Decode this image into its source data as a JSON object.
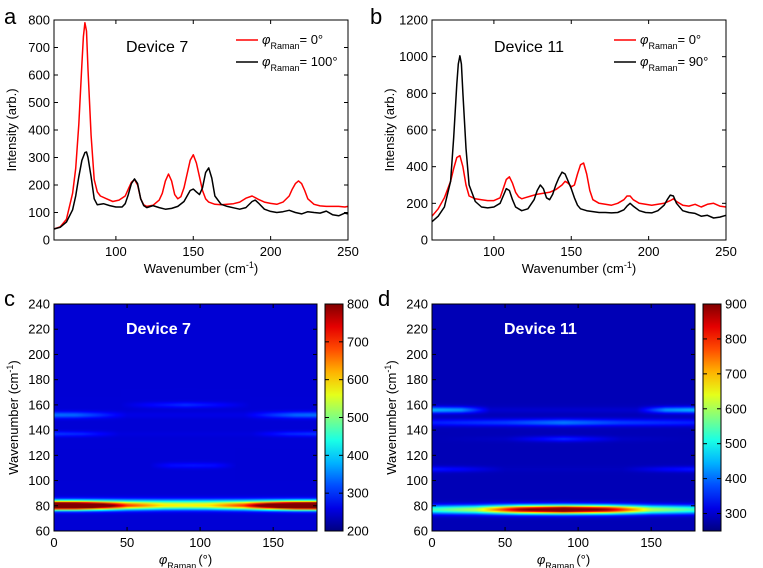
{
  "chart_data": [
    {
      "panel": "a",
      "type": "line",
      "annotation": "Device 7",
      "xlabel": "Wavenumber (cm",
      "xlabel_sup": "-1",
      "xlabel_end": ")",
      "ylabel": "Intensity (arb.)",
      "xlim": [
        60,
        250
      ],
      "ylim": [
        0,
        800
      ],
      "xticks": [
        100,
        150,
        200,
        250
      ],
      "yticks": [
        0,
        100,
        200,
        300,
        400,
        500,
        600,
        700,
        800
      ],
      "legend_position": "top-right",
      "series": [
        {
          "legend_var": "φ",
          "legend_sub": "Raman",
          "legend_value": "= 0°",
          "color": "#ff0000",
          "x": [
            60,
            64,
            68,
            72,
            74,
            76,
            78,
            79,
            80,
            81,
            82,
            84,
            86,
            88,
            90,
            94,
            98,
            102,
            106,
            108,
            110,
            112,
            114,
            116,
            118,
            120,
            124,
            128,
            130,
            132,
            134,
            136,
            138,
            140,
            142,
            144,
            146,
            148,
            150,
            152,
            154,
            156,
            158,
            160,
            164,
            168,
            172,
            176,
            180,
            184,
            188,
            192,
            196,
            200,
            204,
            208,
            212,
            214,
            216,
            218,
            220,
            222,
            224,
            228,
            232,
            236,
            240,
            244,
            248,
            250
          ],
          "y": [
            40,
            48,
            75,
            170,
            260,
            420,
            640,
            740,
            790,
            760,
            620,
            380,
            220,
            175,
            160,
            150,
            140,
            145,
            160,
            185,
            210,
            220,
            200,
            150,
            128,
            122,
            126,
            145,
            170,
            215,
            240,
            215,
            165,
            150,
            158,
            190,
            240,
            290,
            310,
            280,
            230,
            180,
            150,
            138,
            130,
            128,
            130,
            132,
            138,
            152,
            160,
            148,
            138,
            133,
            130,
            138,
            160,
            185,
            205,
            215,
            205,
            180,
            150,
            130,
            124,
            122,
            122,
            122,
            120,
            122
          ]
        },
        {
          "legend_var": "φ",
          "legend_sub": "Raman",
          "legend_value": "= 100°",
          "color": "#000000",
          "x": [
            60,
            64,
            68,
            72,
            74,
            76,
            78,
            80,
            81,
            82,
            84,
            86,
            88,
            92,
            96,
            100,
            104,
            106,
            108,
            110,
            112,
            114,
            116,
            118,
            120,
            124,
            128,
            132,
            136,
            140,
            144,
            146,
            148,
            150,
            152,
            154,
            156,
            158,
            160,
            162,
            164,
            168,
            172,
            176,
            180,
            184,
            188,
            190,
            192,
            196,
            200,
            204,
            208,
            212,
            216,
            220,
            224,
            228,
            232,
            236,
            240,
            244,
            248,
            250
          ],
          "y": [
            40,
            46,
            65,
            110,
            160,
            230,
            290,
            318,
            320,
            300,
            230,
            150,
            128,
            132,
            125,
            120,
            120,
            132,
            165,
            205,
            222,
            205,
            150,
            125,
            118,
            125,
            118,
            112,
            115,
            122,
            140,
            160,
            180,
            185,
            175,
            165,
            190,
            245,
            262,
            225,
            160,
            130,
            122,
            117,
            112,
            118,
            140,
            145,
            135,
            112,
            104,
            100,
            103,
            108,
            100,
            95,
            103,
            100,
            98,
            105,
            92,
            88,
            98,
            95
          ]
        }
      ]
    },
    {
      "panel": "b",
      "type": "line",
      "annotation": "Device 11",
      "xlabel": "Wavenumber (cm",
      "xlabel_sup": "-1",
      "xlabel_end": ")",
      "ylabel": "Intensity (arb.)",
      "xlim": [
        60,
        250
      ],
      "ylim": [
        0,
        1200
      ],
      "xticks": [
        100,
        150,
        200,
        250
      ],
      "yticks": [
        0,
        200,
        400,
        600,
        800,
        1000,
        1200
      ],
      "legend_position": "top-right",
      "series": [
        {
          "legend_var": "φ",
          "legend_sub": "Raman",
          "legend_value": "= 0°",
          "color": "#ff0000",
          "x": [
            60,
            64,
            68,
            72,
            74,
            76,
            78,
            80,
            82,
            84,
            88,
            92,
            96,
            100,
            104,
            106,
            108,
            110,
            112,
            114,
            116,
            118,
            120,
            124,
            128,
            132,
            136,
            140,
            144,
            146,
            148,
            150,
            152,
            154,
            156,
            158,
            160,
            162,
            164,
            168,
            172,
            176,
            180,
            184,
            186,
            188,
            190,
            194,
            198,
            202,
            206,
            210,
            214,
            216,
            218,
            222,
            226,
            230,
            234,
            238,
            242,
            246,
            250
          ],
          "y": [
            130,
            170,
            230,
            320,
            390,
            450,
            460,
            400,
            300,
            240,
            225,
            220,
            215,
            215,
            230,
            280,
            330,
            345,
            310,
            260,
            235,
            225,
            230,
            240,
            250,
            255,
            260,
            275,
            300,
            320,
            310,
            290,
            300,
            360,
            410,
            420,
            360,
            270,
            220,
            200,
            195,
            190,
            200,
            220,
            240,
            240,
            220,
            200,
            195,
            190,
            195,
            200,
            215,
            225,
            210,
            190,
            185,
            195,
            180,
            195,
            200,
            185,
            180
          ]
        },
        {
          "legend_var": "φ",
          "legend_sub": "Raman",
          "legend_value": "= 90°",
          "color": "#000000",
          "x": [
            60,
            64,
            68,
            72,
            74,
            76,
            77,
            78,
            79,
            80,
            82,
            84,
            88,
            92,
            96,
            100,
            104,
            106,
            108,
            110,
            112,
            114,
            118,
            122,
            126,
            128,
            130,
            132,
            134,
            136,
            138,
            140,
            142,
            144,
            146,
            148,
            150,
            152,
            154,
            156,
            160,
            164,
            168,
            172,
            176,
            180,
            184,
            186,
            188,
            190,
            194,
            198,
            202,
            206,
            210,
            212,
            214,
            216,
            218,
            222,
            226,
            230,
            234,
            238,
            242,
            246,
            250
          ],
          "y": [
            100,
            130,
            180,
            320,
            560,
            850,
            960,
            1005,
            960,
            800,
            500,
            300,
            210,
            180,
            175,
            180,
            200,
            240,
            280,
            270,
            220,
            180,
            160,
            170,
            220,
            270,
            300,
            280,
            230,
            220,
            250,
            300,
            340,
            370,
            360,
            320,
            280,
            230,
            190,
            170,
            160,
            155,
            150,
            150,
            148,
            150,
            165,
            185,
            200,
            185,
            160,
            150,
            148,
            160,
            190,
            220,
            245,
            240,
            200,
            160,
            150,
            145,
            130,
            135,
            120,
            125,
            135
          ]
        }
      ]
    },
    {
      "panel": "c",
      "type": "heatmap",
      "annotation": "Device 7",
      "xlabel_var": "φ",
      "xlabel_sub": "Raman",
      "xlabel_unit": "(°)",
      "ylabel": "Wavenumber (cm",
      "ylabel_sup": "-1",
      "ylabel_end": ")",
      "xlim": [
        0,
        180
      ],
      "ylim": [
        60,
        240
      ],
      "xticks": [
        0,
        50,
        100,
        150
      ],
      "yticks": [
        60,
        80,
        100,
        120,
        140,
        160,
        180,
        200,
        220,
        240
      ],
      "colorbar": {
        "min": 200,
        "max": 800,
        "ticks": [
          200,
          300,
          400,
          500,
          600,
          700,
          800
        ]
      },
      "colormap": "jet",
      "background": 250,
      "bands": [
        {
          "y": 80,
          "width": 2.2,
          "amplitude": 260,
          "modulation": [
            [
              0,
              560
            ],
            [
              15,
              540
            ],
            [
              30,
              380
            ],
            [
              50,
              150
            ],
            [
              75,
              40
            ],
            [
              90,
              30
            ],
            [
              105,
              40
            ],
            [
              130,
              150
            ],
            [
              150,
              380
            ],
            [
              165,
              540
            ],
            [
              180,
              560
            ]
          ]
        },
        {
          "y": 83,
          "width": 2.0,
          "amplitude": 100,
          "modulation": [
            [
              0,
              1
            ],
            [
              180,
              1
            ]
          ]
        },
        {
          "y": 152,
          "width": 1.8,
          "amplitude": 0,
          "modulation": [
            [
              0,
              90
            ],
            [
              15,
              85
            ],
            [
              30,
              55
            ],
            [
              50,
              10
            ],
            [
              130,
              10
            ],
            [
              150,
              55
            ],
            [
              165,
              85
            ],
            [
              180,
              90
            ]
          ]
        },
        {
          "y": 137,
          "width": 1.5,
          "amplitude": 0,
          "modulation": [
            [
              0,
              55
            ],
            [
              20,
              45
            ],
            [
              45,
              5
            ],
            [
              135,
              5
            ],
            [
              160,
              45
            ],
            [
              180,
              55
            ]
          ]
        },
        {
          "y": 160,
          "width": 1.6,
          "amplitude": 0,
          "modulation": [
            [
              0,
              0
            ],
            [
              45,
              0
            ],
            [
              65,
              25
            ],
            [
              90,
              50
            ],
            [
              115,
              25
            ],
            [
              135,
              0
            ],
            [
              180,
              0
            ]
          ]
        },
        {
          "y": 112,
          "width": 1.6,
          "amplitude": 0,
          "modulation": [
            [
              0,
              0
            ],
            [
              65,
              0
            ],
            [
              80,
              30
            ],
            [
              95,
              35
            ],
            [
              110,
              30
            ],
            [
              125,
              0
            ],
            [
              180,
              0
            ]
          ]
        }
      ]
    },
    {
      "panel": "d",
      "type": "heatmap",
      "annotation": "Device 11",
      "xlabel_var": "φ",
      "xlabel_sub": "Raman",
      "xlabel_unit": "(°)",
      "ylabel": "Wavenumber (cm",
      "ylabel_sup": "-1",
      "ylabel_end": ")",
      "xlim": [
        0,
        180
      ],
      "ylim": [
        60,
        240
      ],
      "xticks": [
        0,
        50,
        100,
        150
      ],
      "yticks": [
        60,
        80,
        100,
        120,
        140,
        160,
        180,
        200,
        220,
        240
      ],
      "colorbar": {
        "min": 250,
        "max": 900,
        "ticks": [
          300,
          400,
          500,
          600,
          700,
          800,
          900
        ]
      },
      "colormap": "jet",
      "background": 285,
      "bands": [
        {
          "y": 77,
          "width": 2.4,
          "amplitude": 250,
          "modulation": [
            [
              0,
              0
            ],
            [
              30,
              80
            ],
            [
              60,
              350
            ],
            [
              90,
              470
            ],
            [
              120,
              350
            ],
            [
              150,
              80
            ],
            [
              180,
              0
            ]
          ]
        },
        {
          "y": 156,
          "width": 1.8,
          "amplitude": 0,
          "modulation": [
            [
              0,
              160
            ],
            [
              20,
              140
            ],
            [
              40,
              15
            ],
            [
              140,
              15
            ],
            [
              160,
              140
            ],
            [
              180,
              160
            ]
          ]
        },
        {
          "y": 146,
          "width": 2.0,
          "amplitude": 25,
          "modulation": [
            [
              0,
              40
            ],
            [
              50,
              60
            ],
            [
              90,
              100
            ],
            [
              130,
              60
            ],
            [
              180,
              40
            ]
          ]
        },
        {
          "y": 133,
          "width": 1.6,
          "amplitude": 0,
          "modulation": [
            [
              0,
              0
            ],
            [
              50,
              10
            ],
            [
              90,
              70
            ],
            [
              130,
              10
            ],
            [
              180,
              0
            ]
          ]
        },
        {
          "y": 109,
          "width": 1.6,
          "amplitude": 0,
          "modulation": [
            [
              0,
              60
            ],
            [
              20,
              45
            ],
            [
              50,
              5
            ],
            [
              130,
              5
            ],
            [
              160,
              45
            ],
            [
              180,
              60
            ]
          ]
        }
      ]
    }
  ],
  "panel_letters": [
    "a",
    "b",
    "c",
    "d"
  ],
  "colors": {
    "axis": "#000000",
    "annotation_c": "#ffffff",
    "annotation_d": "#ffffff"
  }
}
